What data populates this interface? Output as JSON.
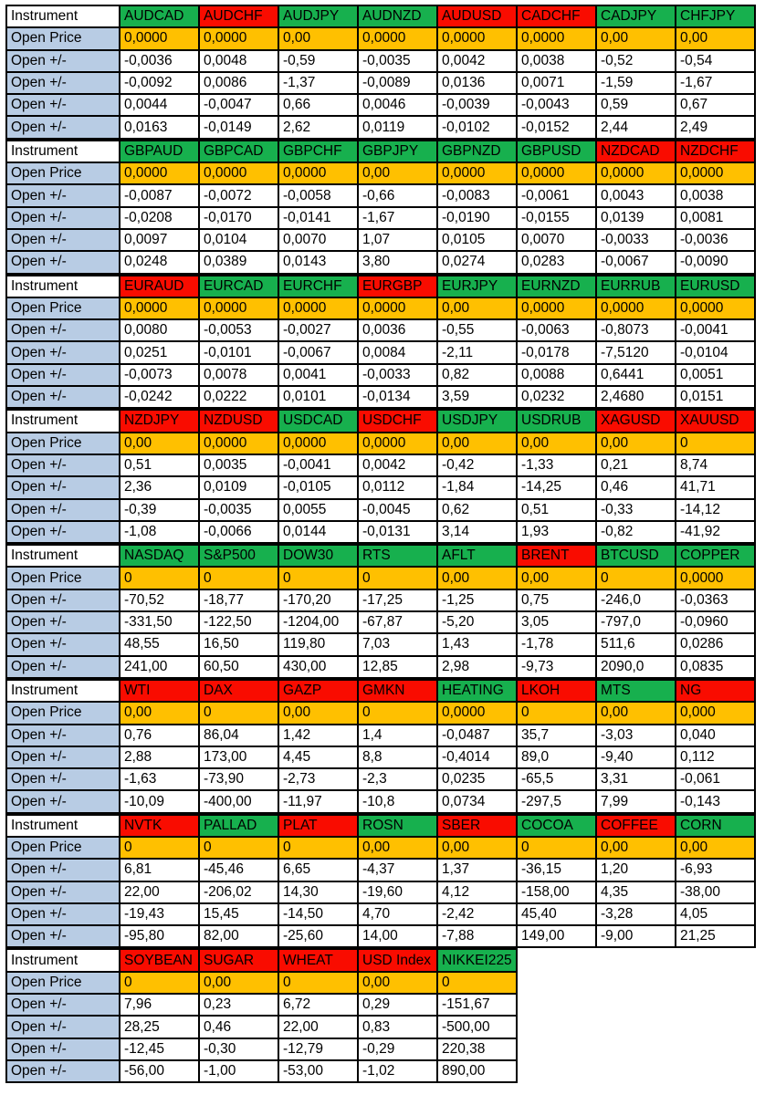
{
  "labels": {
    "instrument": "Instrument",
    "open_price": "Open Price",
    "open_delta": "Open +/-"
  },
  "colors": {
    "green": "#17B04E",
    "red": "#F90C00",
    "price_bg": "#FFC000",
    "label_bg": "#B8CCE4",
    "border": "#000000"
  },
  "blocks": [
    {
      "instruments": [
        {
          "name": "AUDCAD",
          "color": "green",
          "open": "0,0000",
          "deltas": [
            "-0,0036",
            "-0,0092",
            "0,0044",
            "0,0163"
          ]
        },
        {
          "name": "AUDCHF",
          "color": "red",
          "open": "0,0000",
          "deltas": [
            "0,0048",
            "0,0086",
            "-0,0047",
            "-0,0149"
          ]
        },
        {
          "name": "AUDJPY",
          "color": "green",
          "open": "0,00",
          "deltas": [
            "-0,59",
            "-1,37",
            "0,66",
            "2,62"
          ]
        },
        {
          "name": "AUDNZD",
          "color": "green",
          "open": "0,0000",
          "deltas": [
            "-0,0035",
            "-0,0089",
            "0,0046",
            "0,0119"
          ]
        },
        {
          "name": "AUDUSD",
          "color": "red",
          "open": "0,0000",
          "deltas": [
            "0,0042",
            "0,0136",
            "-0,0039",
            "-0,0102"
          ]
        },
        {
          "name": "CADCHF",
          "color": "red",
          "open": "0,0000",
          "deltas": [
            "0,0038",
            "0,0071",
            "-0,0043",
            "-0,0152"
          ]
        },
        {
          "name": "CADJPY",
          "color": "green",
          "open": "0,00",
          "deltas": [
            "-0,52",
            "-1,59",
            "0,59",
            "2,44"
          ]
        },
        {
          "name": "CHFJPY",
          "color": "green",
          "open": "0,00",
          "deltas": [
            "-0,54",
            "-1,67",
            "0,67",
            "2,49"
          ]
        }
      ]
    },
    {
      "instruments": [
        {
          "name": "GBPAUD",
          "color": "green",
          "open": "0,0000",
          "deltas": [
            "-0,0087",
            "-0,0208",
            "0,0097",
            "0,0248"
          ]
        },
        {
          "name": "GBPCAD",
          "color": "green",
          "open": "0,0000",
          "deltas": [
            "-0,0072",
            "-0,0170",
            "0,0104",
            "0,0389"
          ]
        },
        {
          "name": "GBPCHF",
          "color": "green",
          "open": "0,0000",
          "deltas": [
            "-0,0058",
            "-0,0141",
            "0,0070",
            "0,0143"
          ]
        },
        {
          "name": "GBPJPY",
          "color": "green",
          "open": "0,00",
          "deltas": [
            "-0,66",
            "-1,67",
            "1,07",
            "3,80"
          ]
        },
        {
          "name": "GBPNZD",
          "color": "green",
          "open": "0,0000",
          "deltas": [
            "-0,0083",
            "-0,0190",
            "0,0105",
            "0,0274"
          ]
        },
        {
          "name": "GBPUSD",
          "color": "green",
          "open": "0,0000",
          "deltas": [
            "-0,0061",
            "-0,0155",
            "0,0070",
            "0,0283"
          ]
        },
        {
          "name": "NZDCAD",
          "color": "red",
          "open": "0,0000",
          "deltas": [
            "0,0043",
            "0,0139",
            "-0,0033",
            "-0,0067"
          ]
        },
        {
          "name": "NZDCHF",
          "color": "red",
          "open": "0,0000",
          "deltas": [
            "0,0038",
            "0,0081",
            "-0,0036",
            "-0,0090"
          ]
        }
      ]
    },
    {
      "instruments": [
        {
          "name": "EURAUD",
          "color": "red",
          "open": "0,0000",
          "deltas": [
            "0,0080",
            "0,0251",
            "-0,0073",
            "-0,0242"
          ]
        },
        {
          "name": "EURCAD",
          "color": "green",
          "open": "0,0000",
          "deltas": [
            "-0,0053",
            "-0,0101",
            "0,0078",
            "0,0222"
          ]
        },
        {
          "name": "EURCHF",
          "color": "green",
          "open": "0,0000",
          "deltas": [
            "-0,0027",
            "-0,0067",
            "0,0041",
            "0,0101"
          ]
        },
        {
          "name": "EURGBP",
          "color": "red",
          "open": "0,0000",
          "deltas": [
            "0,0036",
            "0,0084",
            "-0,0033",
            "-0,0134"
          ]
        },
        {
          "name": "EURJPY",
          "color": "green",
          "open": "0,00",
          "deltas": [
            "-0,55",
            "-2,11",
            "0,82",
            "3,59"
          ]
        },
        {
          "name": "EURNZD",
          "color": "green",
          "open": "0,0000",
          "deltas": [
            "-0,0063",
            "-0,0178",
            "0,0088",
            "0,0232"
          ]
        },
        {
          "name": "EURRUB",
          "color": "green",
          "open": "0,0000",
          "deltas": [
            "-0,8073",
            "-7,5120",
            "0,6441",
            "2,4680"
          ]
        },
        {
          "name": "EURUSD",
          "color": "green",
          "open": "0,0000",
          "deltas": [
            "-0,0041",
            "-0,0104",
            "0,0051",
            "0,0151"
          ]
        }
      ]
    },
    {
      "instruments": [
        {
          "name": "NZDJPY",
          "color": "red",
          "open": "0,00",
          "deltas": [
            "0,51",
            "2,36",
            "-0,39",
            "-1,08"
          ]
        },
        {
          "name": "NZDUSD",
          "color": "red",
          "open": "0,0000",
          "deltas": [
            "0,0035",
            "0,0109",
            "-0,0035",
            "-0,0066"
          ]
        },
        {
          "name": "USDCAD",
          "color": "green",
          "open": "0,0000",
          "deltas": [
            "-0,0041",
            "-0,0105",
            "0,0055",
            "0,0144"
          ]
        },
        {
          "name": "USDCHF",
          "color": "red",
          "open": "0,0000",
          "deltas": [
            "0,0042",
            "0,0112",
            "-0,0045",
            "-0,0131"
          ]
        },
        {
          "name": "USDJPY",
          "color": "green",
          "open": "0,00",
          "deltas": [
            "-0,42",
            "-1,84",
            "0,62",
            "3,14"
          ]
        },
        {
          "name": "USDRUB",
          "color": "green",
          "open": "0,00",
          "deltas": [
            "-1,33",
            "-14,25",
            "0,51",
            "1,93"
          ]
        },
        {
          "name": "XAGUSD",
          "color": "red",
          "open": "0,00",
          "deltas": [
            "0,21",
            "0,46",
            "-0,33",
            "-0,82"
          ]
        },
        {
          "name": "XAUUSD",
          "color": "red",
          "open": "0",
          "deltas": [
            "8,74",
            "41,71",
            "-14,12",
            "-41,92"
          ]
        }
      ]
    },
    {
      "instruments": [
        {
          "name": "NASDAQ",
          "color": "green",
          "open": "0",
          "deltas": [
            "-70,52",
            "-331,50",
            "48,55",
            "241,00"
          ]
        },
        {
          "name": "S&P500",
          "color": "green",
          "open": "0",
          "deltas": [
            "-18,77",
            "-122,50",
            "16,50",
            "60,50"
          ]
        },
        {
          "name": "DOW30",
          "color": "green",
          "open": "0",
          "deltas": [
            "-170,20",
            "-1204,00",
            "119,80",
            "430,00"
          ]
        },
        {
          "name": "RTS",
          "color": "green",
          "open": "0",
          "deltas": [
            "-17,25",
            "-67,87",
            "7,03",
            "12,85"
          ]
        },
        {
          "name": "AFLT",
          "color": "green",
          "open": "0,00",
          "deltas": [
            "-1,25",
            "-5,20",
            "1,43",
            "2,98"
          ]
        },
        {
          "name": "BRENT",
          "color": "red",
          "open": "0,00",
          "deltas": [
            "0,75",
            "3,05",
            "-1,78",
            "-9,73"
          ]
        },
        {
          "name": "BTCUSD",
          "color": "green",
          "open": "0",
          "deltas": [
            "-246,0",
            "-797,0",
            "511,6",
            "2090,0"
          ]
        },
        {
          "name": "COPPER",
          "color": "green",
          "open": "0,0000",
          "deltas": [
            "-0,0363",
            "-0,0960",
            "0,0286",
            "0,0835"
          ]
        }
      ]
    },
    {
      "instruments": [
        {
          "name": "WTI",
          "color": "red",
          "open": "0,00",
          "deltas": [
            "0,76",
            "2,88",
            "-1,63",
            "-10,09"
          ]
        },
        {
          "name": "DAX",
          "color": "red",
          "open": "0",
          "deltas": [
            "86,04",
            "173,00",
            "-73,90",
            "-400,00"
          ]
        },
        {
          "name": "GAZP",
          "color": "red",
          "open": "0,00",
          "deltas": [
            "1,42",
            "4,45",
            "-2,73",
            "-11,97"
          ]
        },
        {
          "name": "GMKN",
          "color": "red",
          "open": "0",
          "deltas": [
            "1,4",
            "8,8",
            "-2,3",
            "-10,8"
          ]
        },
        {
          "name": "HEATING",
          "color": "green",
          "open": "0,0000",
          "deltas": [
            "-0,0487",
            "-0,4014",
            "0,0235",
            "0,0734"
          ]
        },
        {
          "name": "LKOH",
          "color": "red",
          "open": "0",
          "deltas": [
            "35,7",
            "89,0",
            "-65,5",
            "-297,5"
          ]
        },
        {
          "name": "MTS",
          "color": "green",
          "open": "0,00",
          "deltas": [
            "-3,03",
            "-9,40",
            "3,31",
            "7,99"
          ]
        },
        {
          "name": "NG",
          "color": "red",
          "open": "0,000",
          "deltas": [
            "0,040",
            "0,112",
            "-0,061",
            "-0,143"
          ]
        }
      ]
    },
    {
      "instruments": [
        {
          "name": "NVTK",
          "color": "red",
          "open": "0",
          "deltas": [
            "6,81",
            "22,00",
            "-19,43",
            "-95,80"
          ]
        },
        {
          "name": "PALLAD",
          "color": "green",
          "open": "0",
          "deltas": [
            "-45,46",
            "-206,02",
            "15,45",
            "82,00"
          ]
        },
        {
          "name": "PLAT",
          "color": "red",
          "open": "0",
          "deltas": [
            "6,65",
            "14,30",
            "-14,50",
            "-25,60"
          ]
        },
        {
          "name": "ROSN",
          "color": "green",
          "open": "0,00",
          "deltas": [
            "-4,37",
            "-19,60",
            "4,70",
            "14,00"
          ]
        },
        {
          "name": "SBER",
          "color": "red",
          "open": "0,00",
          "deltas": [
            "1,37",
            "4,12",
            "-2,42",
            "-7,88"
          ]
        },
        {
          "name": "COCOA",
          "color": "green",
          "open": "0",
          "deltas": [
            "-36,15",
            "-158,00",
            "45,40",
            "149,00"
          ]
        },
        {
          "name": "COFFEE",
          "color": "red",
          "open": "0,00",
          "deltas": [
            "1,20",
            "4,35",
            "-3,28",
            "-9,00"
          ]
        },
        {
          "name": "CORN",
          "color": "green",
          "open": "0,00",
          "deltas": [
            "-6,93",
            "-38,00",
            "4,05",
            "21,25"
          ]
        }
      ]
    },
    {
      "instruments": [
        {
          "name": "SOYBEAN",
          "color": "red",
          "open": "0",
          "deltas": [
            "7,96",
            "28,25",
            "-12,45",
            "-56,00"
          ]
        },
        {
          "name": "SUGAR",
          "color": "red",
          "open": "0,00",
          "deltas": [
            "0,23",
            "0,46",
            "-0,30",
            "-1,00"
          ]
        },
        {
          "name": "WHEAT",
          "color": "red",
          "open": "0",
          "deltas": [
            "6,72",
            "22,00",
            "-12,79",
            "-53,00"
          ]
        },
        {
          "name": "USD Index",
          "color": "red",
          "open": "0,00",
          "deltas": [
            "0,29",
            "0,83",
            "-0,29",
            "-1,02"
          ]
        },
        {
          "name": "NIKKEI225",
          "color": "green",
          "open": "0",
          "deltas": [
            "-151,67",
            "-500,00",
            "220,38",
            "890,00"
          ]
        }
      ]
    }
  ]
}
